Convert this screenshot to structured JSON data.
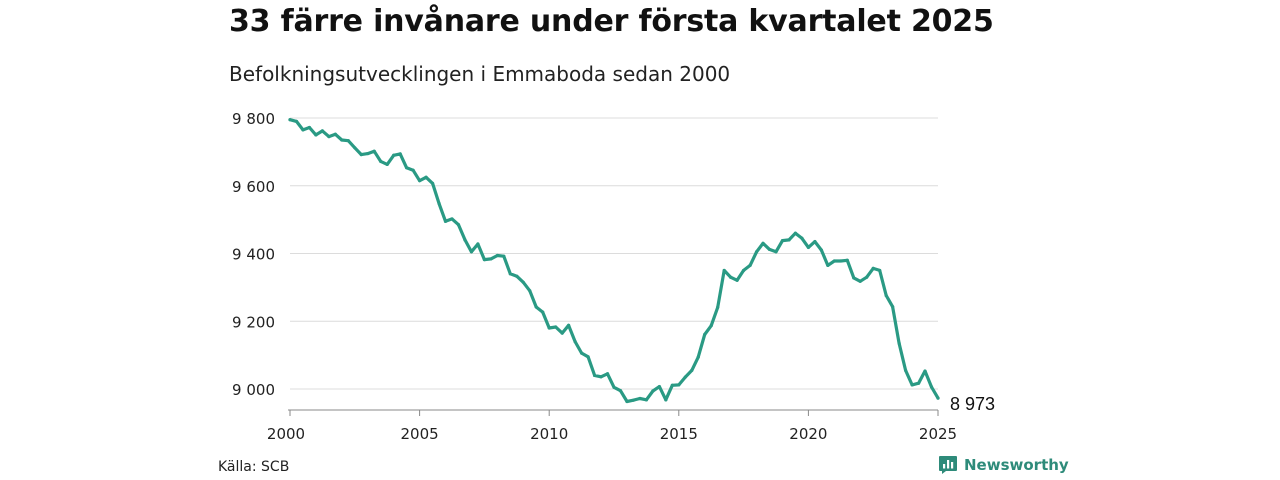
{
  "header": {
    "title": "33 färre invånare under första kvartalet 2025",
    "subtitle": "Befolkningsutvecklingen i Emmaboda sedan 2000"
  },
  "footer": {
    "source": "Källa: SCB",
    "brand": "Newsworthy",
    "brand_icon": "bar-chart-icon",
    "brand_color": "#2e8b7a"
  },
  "colors": {
    "line": "#2a9a84",
    "grid": "#dcdcdc",
    "axis": "#888888"
  },
  "chart_data": {
    "type": "line",
    "title": "33 färre invånare under första kvartalet 2025",
    "subtitle": "Befolkningsutvecklingen i Emmaboda sedan 2000",
    "xlabel": "",
    "ylabel": "",
    "xlim": [
      2000,
      2025.25
    ],
    "ylim": [
      8940,
      9820
    ],
    "yticks": [
      9000,
      9200,
      9400,
      9600,
      9800
    ],
    "ytick_labels": [
      "9 000",
      "9 200",
      "9 400",
      "9 600",
      "9 800"
    ],
    "xticks": [
      2000,
      2005,
      2010,
      2015,
      2020,
      2025
    ],
    "xtick_labels": [
      "2000",
      "2005",
      "2010",
      "2015",
      "2020",
      "2025"
    ],
    "grid": true,
    "end_label": "8 973",
    "series": [
      {
        "x": [
          2000.0,
          2000.25,
          2000.5,
          2000.75,
          2001.0,
          2001.25,
          2001.5,
          2001.75,
          2002.0,
          2002.25,
          2002.5,
          2002.75,
          2003.0,
          2003.25,
          2003.5,
          2003.75,
          2004.0,
          2004.25,
          2004.5,
          2004.75,
          2005.0,
          2005.25,
          2005.5,
          2005.75,
          2006.0,
          2006.25,
          2006.5,
          2006.75,
          2007.0,
          2007.25,
          2007.5,
          2007.75,
          2008.0,
          2008.25,
          2008.5,
          2008.75,
          2009.0,
          2009.25,
          2009.5,
          2009.75,
          2010.0,
          2010.25,
          2010.5,
          2010.75,
          2011.0,
          2011.25,
          2011.5,
          2011.75,
          2012.0,
          2012.25,
          2012.5,
          2012.75,
          2013.0,
          2013.25,
          2013.5,
          2013.75,
          2014.0,
          2014.25,
          2014.5,
          2014.75,
          2015.0,
          2015.25,
          2015.5,
          2015.75,
          2016.0,
          2016.25,
          2016.5,
          2016.75,
          2017.0,
          2017.25,
          2017.5,
          2017.75,
          2018.0,
          2018.25,
          2018.5,
          2018.75,
          2019.0,
          2019.25,
          2019.5,
          2019.75,
          2020.0,
          2020.25,
          2020.5,
          2020.75,
          2021.0,
          2021.25,
          2021.5,
          2021.75,
          2022.0,
          2022.25,
          2022.5,
          2022.75,
          2023.0,
          2023.25,
          2023.5,
          2023.75,
          2024.0,
          2024.25,
          2024.5,
          2024.75,
          2025.0
        ],
        "values": [
          9795,
          9790,
          9765,
          9772,
          9750,
          9762,
          9745,
          9752,
          9735,
          9733,
          9712,
          9692,
          9695,
          9702,
          9672,
          9663,
          9690,
          9694,
          9653,
          9646,
          9615,
          9625,
          9607,
          9548,
          9495,
          9502,
          9485,
          9440,
          9405,
          9428,
          9382,
          9384,
          9394,
          9392,
          9340,
          9333,
          9315,
          9290,
          9242,
          9227,
          9180,
          9183,
          9165,
          9188,
          9140,
          9106,
          9095,
          9040,
          9036,
          9045,
          9005,
          8995,
          8963,
          8967,
          8972,
          8968,
          8994,
          9007,
          8968,
          9011,
          9012,
          9035,
          9055,
          9094,
          9161,
          9187,
          9241,
          9350,
          9330,
          9321,
          9350,
          9365,
          9405,
          9430,
          9412,
          9405,
          9438,
          9440,
          9460,
          9445,
          9418,
          9435,
          9410,
          9365,
          9378,
          9378,
          9380,
          9328,
          9318,
          9330,
          9356,
          9350,
          9276,
          9243,
          9135,
          9055,
          9012,
          9017,
          9053,
          9006,
          8973
        ]
      }
    ]
  }
}
